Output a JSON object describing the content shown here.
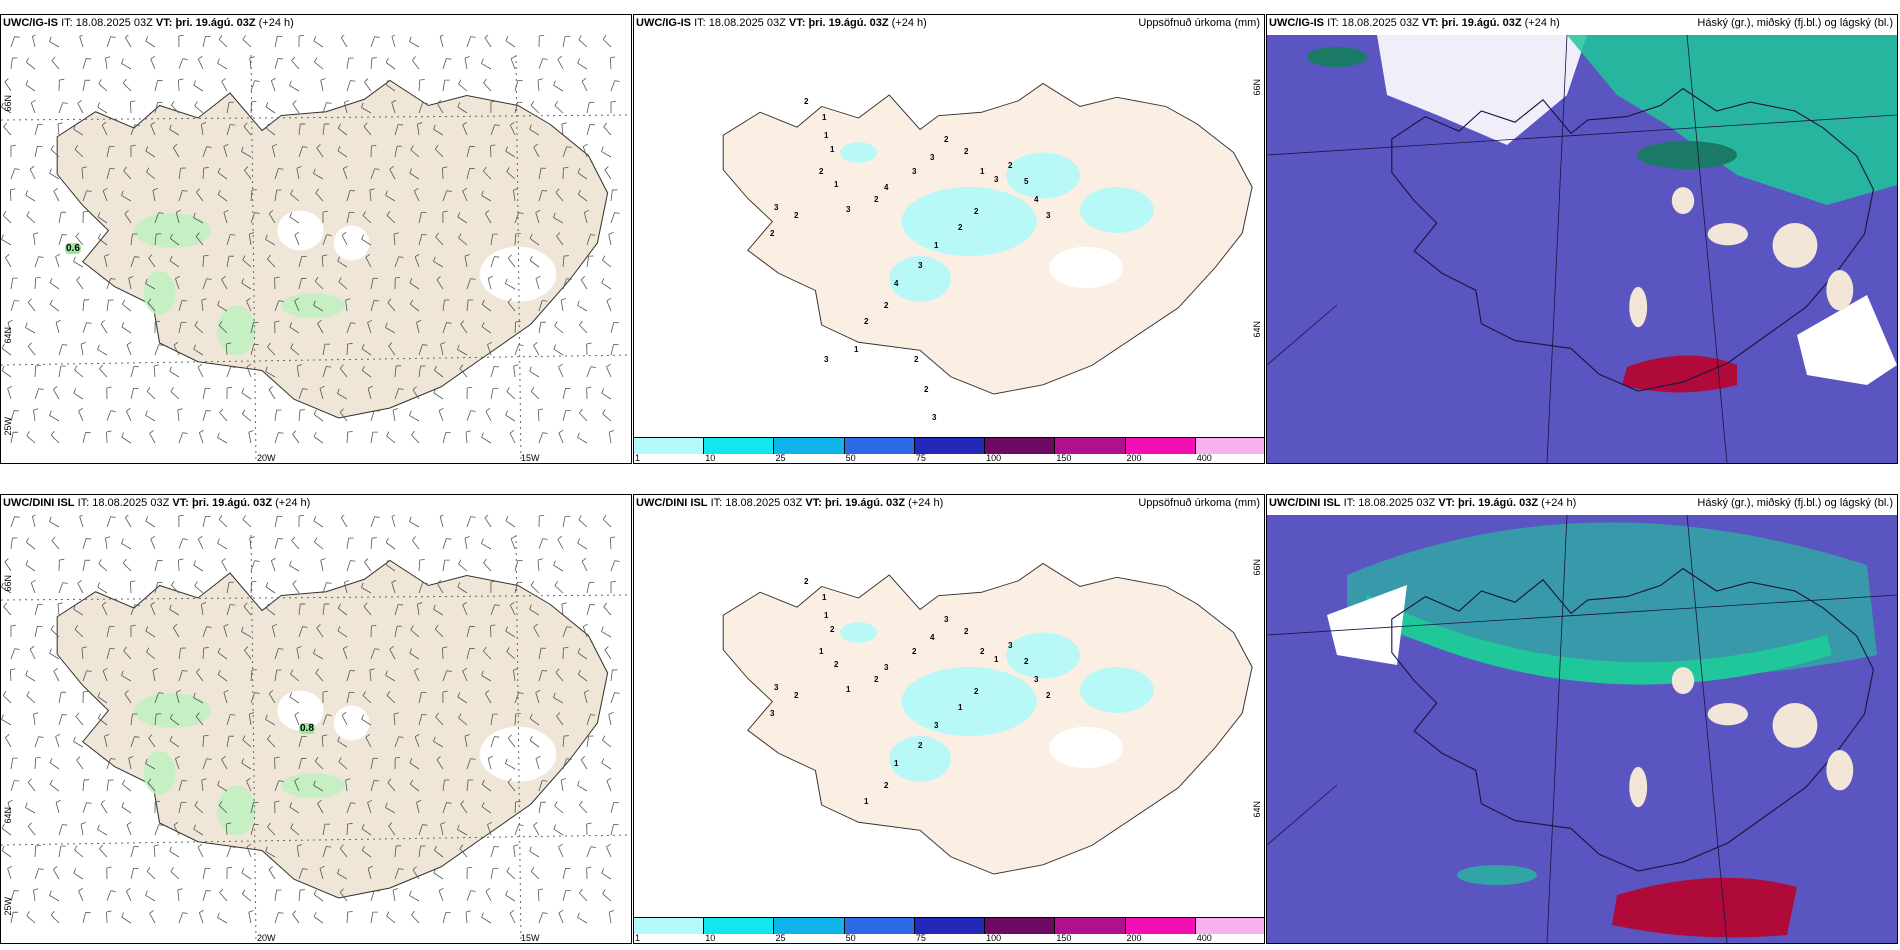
{
  "rows": [
    {
      "model": "UWC/IG-IS",
      "it_label": "IT:",
      "it_value": "18.08.2025 03Z",
      "vt_label": "VT:",
      "vt_value": "þri. 19.ágú. 03Z",
      "lead": "(+24 h)",
      "wind_spot_value": "0.6",
      "precip_numbers": [
        "2",
        "1",
        "1",
        "1",
        "2",
        "1",
        "3",
        "2",
        "2",
        "3",
        "2",
        "4",
        "3",
        "3",
        "2",
        "2",
        "1",
        "3",
        "2",
        "5",
        "4",
        "3",
        "2",
        "2",
        "1",
        "3",
        "4",
        "2",
        "2",
        "1",
        "3",
        "2",
        "2",
        "3"
      ]
    },
    {
      "model": "UWC/DINI ISL",
      "it_label": "IT:",
      "it_value": "18.08.2025 03Z",
      "vt_label": "VT:",
      "vt_value": "þri. 19.ágú. 03Z",
      "lead": "(+24 h)",
      "wind_spot_value": "0.8",
      "precip_numbers": [
        "2",
        "1",
        "1",
        "2",
        "1",
        "2",
        "3",
        "2",
        "3",
        "1",
        "2",
        "3",
        "2",
        "4",
        "3",
        "2",
        "2",
        "1",
        "3",
        "2",
        "3",
        "2",
        "2",
        "1",
        "3",
        "2",
        "1",
        "2",
        "1"
      ]
    }
  ],
  "precip_title": "Uppsöfnuð úrkoma (mm)",
  "cloud_title": "Háský (gr.), miðský (fj.bl.) og lágský (bl.)",
  "axis_labels": {
    "lat_66": "66N",
    "lat_64": "64N",
    "lon_25": "25W",
    "lon_20": "20W",
    "lon_15": "15W"
  },
  "colorbar": {
    "ticks": [
      "1",
      "10",
      "25",
      "50",
      "75",
      "100",
      "150",
      "200",
      "400"
    ],
    "colors": [
      "#b4faf8",
      "#14e6ee",
      "#10b4ea",
      "#2e6ae8",
      "#2328b8",
      "#6e0a62",
      "#b0108c",
      "#f010b4",
      "#f8b0f0"
    ]
  },
  "colors": {
    "land": "#f0e6d8",
    "precip_land": "#fbefe4",
    "light_rain": "#b8f8f6",
    "wind_green": "#c2f0c2",
    "cloud_base": "#5a55c0",
    "cloud_low": "#3f3aa0",
    "cloud_mid": "#1fc79a",
    "cloud_high": "#b00a3a",
    "snow_white": "#ffffff"
  }
}
